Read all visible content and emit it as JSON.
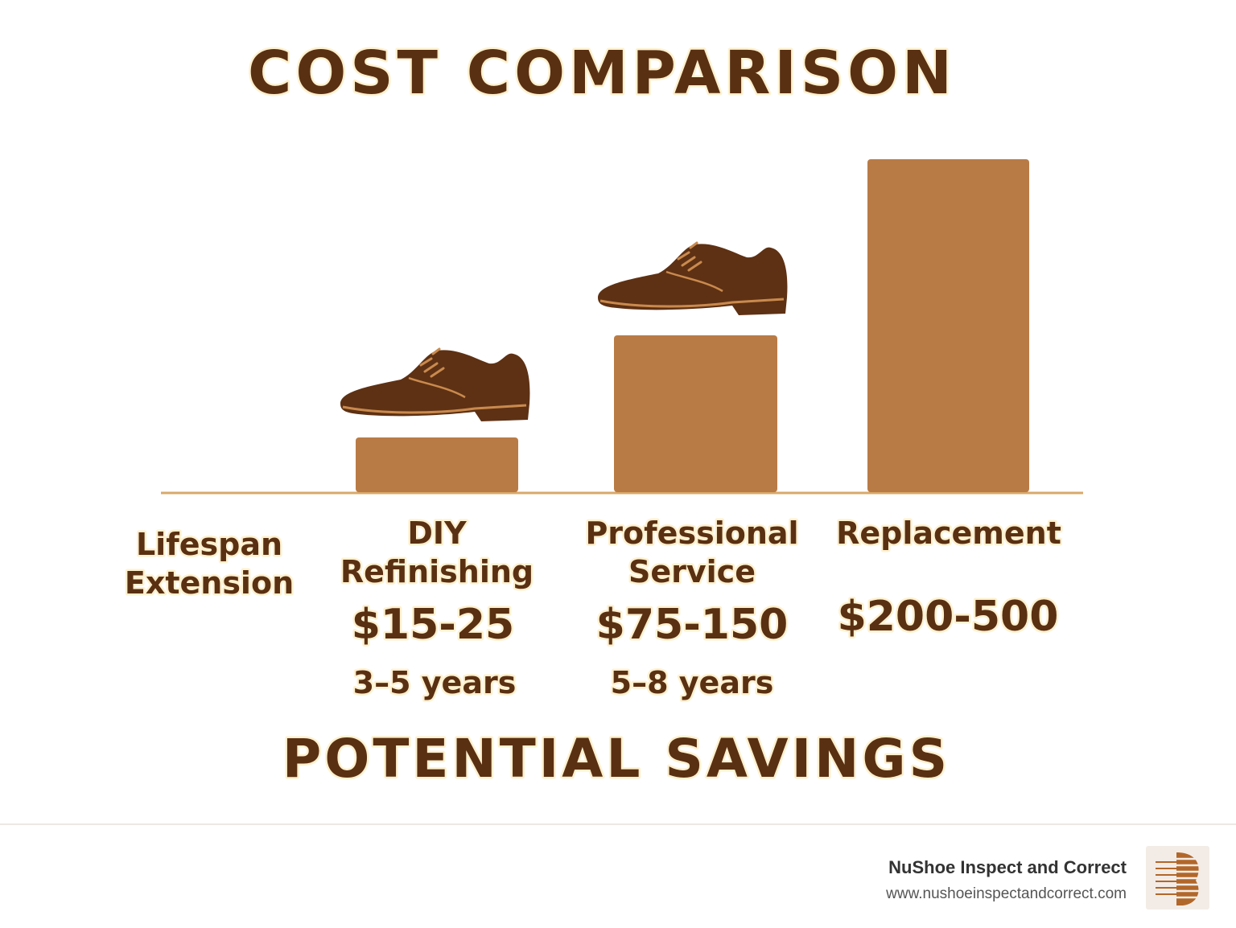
{
  "title": "COST COMPARISON",
  "row_label_lines": [
    "Lifespan",
    "Extension"
  ],
  "columns": [
    {
      "label_lines": [
        "DIY",
        "Refinishing"
      ],
      "price": "$15-25",
      "lifespan": "3–5 years"
    },
    {
      "label_lines": [
        "Professional",
        "Service"
      ],
      "price": "$75-150",
      "lifespan": "5–8 years"
    },
    {
      "label_lines": [
        "Replacement"
      ],
      "price": "$200-500"
    }
  ],
  "bottom_heading": "POTENTIAL SAVINGS",
  "footer": {
    "brand": "NuShoe Inspect and Correct",
    "url": "www.nushoeinspectandcorrect.com"
  }
}
